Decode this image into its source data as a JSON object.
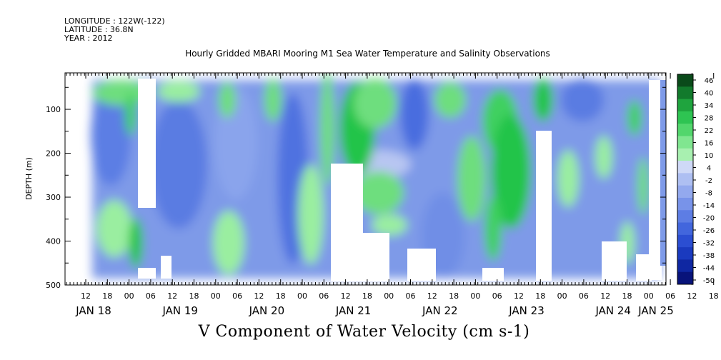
{
  "header": {
    "longitude": "LONGITUDE : 122W(-122)",
    "latitude": "LATITUDE : 36.8N",
    "year": "YEAR : 2012"
  },
  "chart_data": {
    "type": "heatmap",
    "title": "Hourly Gridded MBARI Mooring M1 Sea Water Temperature and Salinity Observations",
    "xlabel": "V Component of Water Velocity (cm s-1)",
    "ylabel": "DEPTH (m)",
    "y_ticks": [
      100,
      200,
      300,
      400,
      500
    ],
    "ylim": [
      500,
      0
    ],
    "x_hour_ticks": [
      "12",
      "18",
      "00",
      "06",
      "12",
      "18",
      "00",
      "06",
      "12",
      "18",
      "00",
      "06",
      "12",
      "18",
      "00",
      "06",
      "12",
      "18",
      "00",
      "06",
      "12",
      "18",
      "00",
      "06",
      "12",
      "18",
      "00",
      "06",
      "12",
      "18",
      "00"
    ],
    "x_day_labels": [
      "JAN 18",
      "JAN 19",
      "JAN 20",
      "JAN 21",
      "JAN 22",
      "JAN 23",
      "JAN 24",
      "JAN 25"
    ],
    "colorbar_labels": [
      "46",
      "40",
      "34",
      "28",
      "22",
      "16",
      "10",
      "4",
      "-2",
      "-8",
      "-14",
      "-20",
      "-26",
      "-32",
      "-38",
      "-44",
      "-50"
    ],
    "colors": {
      "strong_positive": "#0a5a1e",
      "positive": "#22c44a",
      "weak_positive": "#9aeea0",
      "near_zero": "#b8c6f2",
      "negative": "#6a8ae8",
      "strong_negative": "#0a1a8c"
    }
  }
}
